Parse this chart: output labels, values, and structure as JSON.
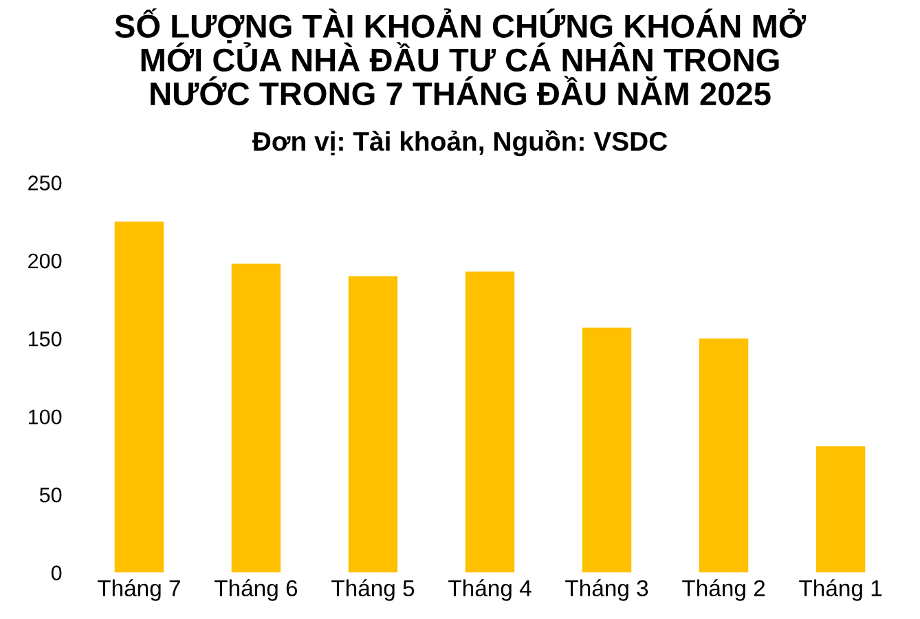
{
  "chart_data": {
    "type": "bar",
    "title": "SỐ LƯỢNG TÀI KHOẢN CHỨNG KHOÁN MỞ\nMỚI CỦA NHÀ ĐẦU TƯ CÁ NHÂN TRONG\nNƯỚC TRONG 7 THÁNG ĐẦU NĂM 2025",
    "subtitle": "Đơn vị: Tài khoản, Nguồn: VSDC",
    "categories": [
      "Tháng 7",
      "Tháng 6",
      "Tháng 5",
      "Tháng 4",
      "Tháng 3",
      "Tháng 2",
      "Tháng 1"
    ],
    "values": [
      225,
      198,
      190,
      193,
      157,
      150,
      81
    ],
    "color": "#ffc000",
    "ylim": [
      0,
      250
    ],
    "yticks": [
      0,
      50,
      100,
      150,
      200,
      250
    ],
    "grid": false,
    "legend": false
  }
}
